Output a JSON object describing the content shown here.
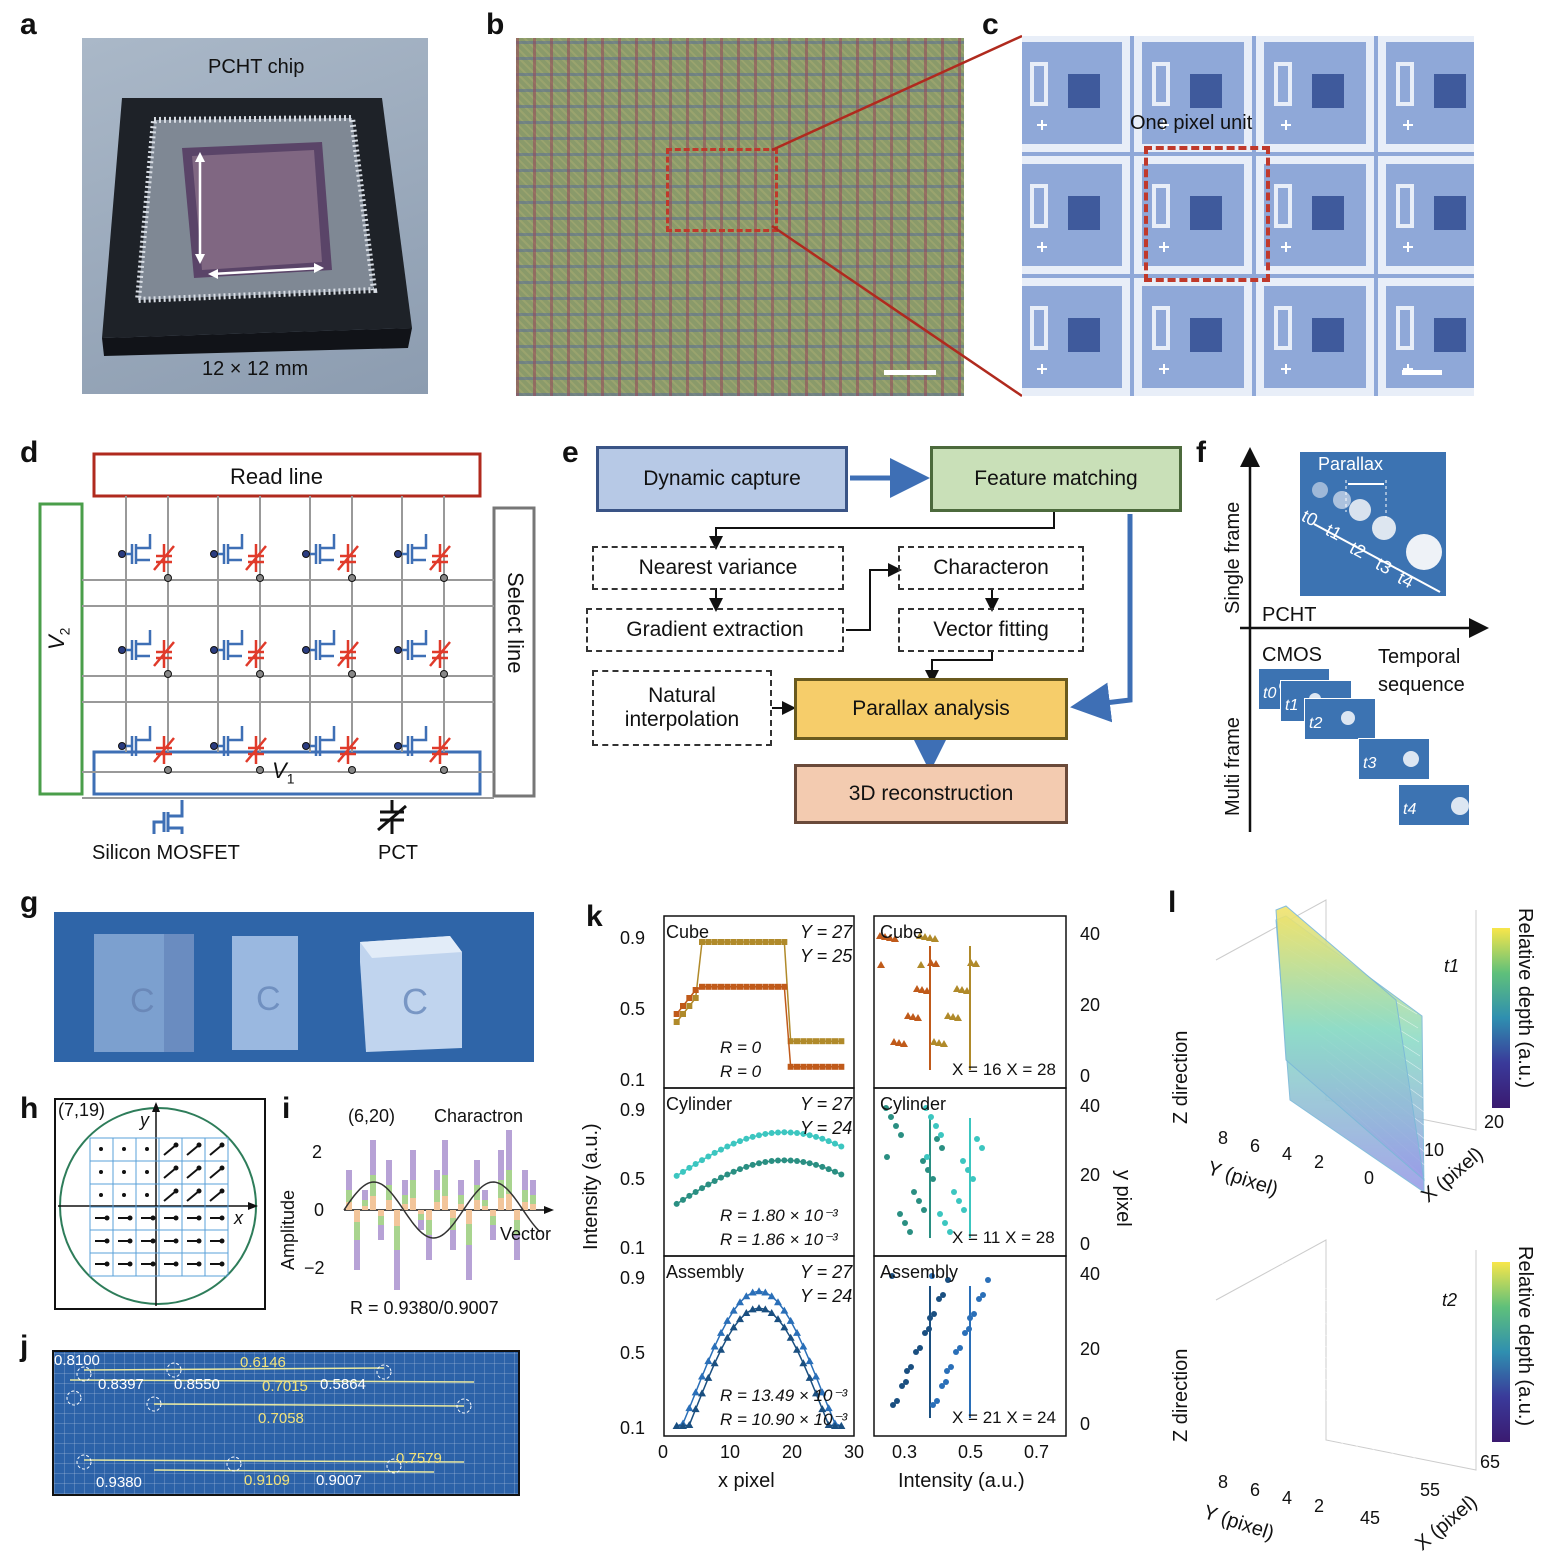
{
  "panels": {
    "a": "a",
    "b": "b",
    "c": "c",
    "d": "d",
    "e": "e",
    "f": "f",
    "g": "g",
    "h": "h",
    "i": "i",
    "j": "j",
    "k": "k",
    "l": "l"
  },
  "a": {
    "chip_label": "PCHT chip",
    "size_label": "12 × 12 mm"
  },
  "c": {
    "unit_label": "One pixel unit"
  },
  "d": {
    "read_line": "Read line",
    "select_line": "Select line",
    "v1": "V",
    "v1_sub": "1",
    "v2": "V",
    "v2_sub": "2",
    "mosfet": "Silicon MOSFET",
    "pct": "PCT"
  },
  "e": {
    "dynamic_capture": "Dynamic capture",
    "feature_matching": "Feature matching",
    "nearest_variance": "Nearest variance",
    "gradient_extraction": "Gradient extraction",
    "characteron": "Characteron",
    "vector_fitting": "Vector fitting",
    "natural_interpolation_1": "Natural",
    "natural_interpolation_2": "interpolation",
    "parallax_analysis": "Parallax analysis",
    "reconstruction": "3D reconstruction"
  },
  "f": {
    "single_frame": "Single frame",
    "multi_frame": "Multi frame",
    "pcht": "PCHT",
    "cmos": "CMOS",
    "temporal_1": "Temporal",
    "temporal_2": "sequence",
    "parallax": "Parallax",
    "times": [
      "t0",
      "t1",
      "t2",
      "t3",
      "t4"
    ]
  },
  "h": {
    "coord": "(7,19)",
    "y": "y",
    "x": "x"
  },
  "i": {
    "coord": "(6,20)",
    "charactron": "Charactron",
    "vector": "Vector",
    "ylabel": "Amplitude",
    "r": "R = 0.9380/0.9007",
    "yticks": [
      "2",
      "0",
      "−2"
    ]
  },
  "j": {
    "values": [
      "0.8100",
      "0.6146",
      "0.8397",
      "0.8550",
      "0.7015",
      "0.5864",
      "0.7058",
      "0.7579",
      "0.9380",
      "0.9109",
      "0.9007"
    ]
  },
  "k": {
    "ylabel": "Intensity (a.u.)",
    "xlabel": "x pixel",
    "xlabel2": "Intensity (a.u.)",
    "ylabel2": "y pixel",
    "yticks": [
      "0.9",
      "0.5",
      "0.1"
    ],
    "xticks": [
      "0",
      "10",
      "20",
      "30"
    ],
    "xticks2": [
      "0.3",
      "0.5",
      "0.7"
    ],
    "yticks2": [
      "40",
      "20",
      "0"
    ],
    "rows": [
      {
        "name": "Cube",
        "y1": "Y = 27",
        "y2": "Y = 25",
        "r1": "R = 0",
        "r2": "R = 0",
        "xr": "X = 16 X = 28"
      },
      {
        "name": "Cylinder",
        "y1": "Y = 27",
        "y2": "Y = 24",
        "r1": "R = 1.80 × 10⁻³",
        "r2": "R = 1.86 × 10⁻³",
        "xr": "X = 11 X = 28",
        "icon": "B"
      },
      {
        "name": "Assembly",
        "y1": "Y = 27",
        "y2": "Y = 24",
        "r1": "R = 13.49 × 10⁻³",
        "r2": "R = 10.90 × 10⁻³",
        "xr": "X = 21 X = 24"
      }
    ]
  },
  "l": {
    "zdir": "Z direction",
    "ypix": "Y (pixel)",
    "xpix": "X (pixel)",
    "depth": "Relative depth (a.u.)",
    "t1": "t1",
    "t2": "t2",
    "yticks": [
      "8",
      "6",
      "4",
      "2"
    ],
    "top_xticks": [
      "0",
      "10",
      "20"
    ],
    "bot_xticks": [
      "45",
      "55",
      "65"
    ]
  },
  "colors": {
    "red": "#c0392b",
    "blue": "#3e6fb5",
    "green": "#4a9e4a",
    "gray": "#888888"
  }
}
